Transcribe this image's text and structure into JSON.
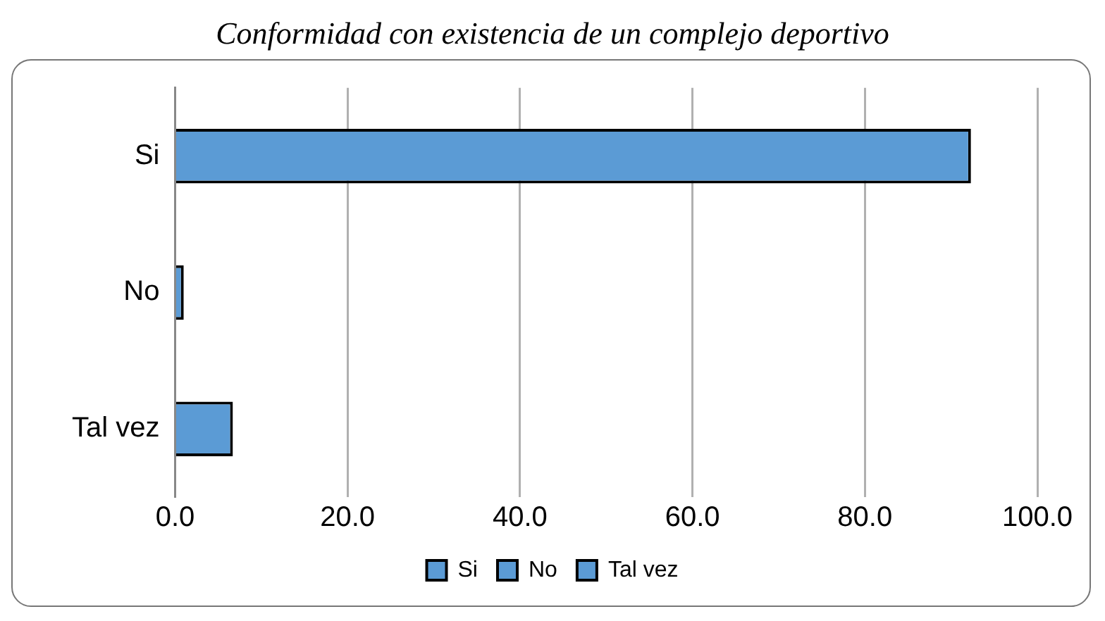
{
  "chart_data": {
    "type": "bar",
    "orientation": "horizontal",
    "title": "Conformidad con existencia de un complejo deportivo",
    "categories": [
      "Si",
      "No",
      "Tal vez"
    ],
    "stacked": true,
    "series": [
      {
        "name": "Si",
        "color": "#5b9bd5",
        "values": [
          92.3,
          null,
          null
        ]
      },
      {
        "name": "No",
        "color": "#5b9bd5",
        "values": [
          null,
          1.0,
          null
        ]
      },
      {
        "name": "Tal vez",
        "color": "#5b9bd5",
        "values": [
          null,
          null,
          6.7
        ]
      }
    ],
    "xlim": [
      0,
      100
    ],
    "xticks": [
      {
        "value": 0,
        "label": "0.0"
      },
      {
        "value": 20,
        "label": "20.0"
      },
      {
        "value": 40,
        "label": "40.0"
      },
      {
        "value": 60,
        "label": "60.0"
      },
      {
        "value": 80,
        "label": "80.0"
      },
      {
        "value": 100,
        "label": "100.0"
      }
    ],
    "grid": "x",
    "legend": "bottom"
  }
}
